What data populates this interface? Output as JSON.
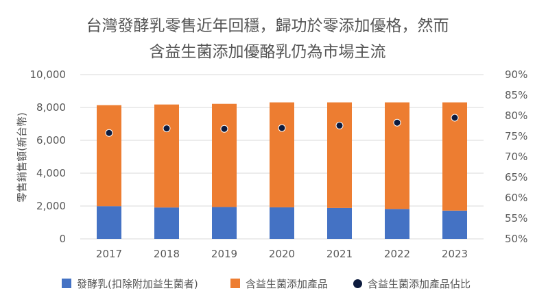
{
  "title_line1": "台灣發酵乳零售近年回穩，歸功於零添加優格，然而",
  "title_line2": "含益生菌添加優酪乳仍為市場主流",
  "chart_data": {
    "type": "bar",
    "stacked": true,
    "title": "台灣發酵乳零售近年回穩，歸功於零添加優格，然而含益生菌添加優酪乳仍為市場主流",
    "ylabel": "零售銷售額(新台幣)",
    "categories": [
      "2017",
      "2018",
      "2019",
      "2020",
      "2021",
      "2022",
      "2023"
    ],
    "ylim": [
      0,
      10000
    ],
    "yticks": [
      "10,000",
      "8,000",
      "6,000",
      "4,000",
      "2,000",
      "0"
    ],
    "y2lim": [
      50,
      90
    ],
    "y2ticks": [
      "90%",
      "85%",
      "80%",
      "75%",
      "70%",
      "65%",
      "60%",
      "55%",
      "50%"
    ],
    "series": [
      {
        "name": "發酵乳(扣除附加益生菌者)",
        "values": [
          1990,
          1910,
          1940,
          1920,
          1880,
          1820,
          1720
        ],
        "color": "#4472c4",
        "axis": "left"
      },
      {
        "name": "含益生菌添加產品",
        "values": [
          6150,
          6270,
          6280,
          6390,
          6430,
          6490,
          6590
        ],
        "color": "#ed7d31",
        "axis": "left"
      },
      {
        "name": "含益生菌添加產品佔比",
        "values": [
          75.8,
          76.9,
          76.8,
          77.0,
          77.6,
          78.3,
          79.5
        ],
        "color": "#0d1b3e",
        "axis": "right",
        "mark": "dot"
      }
    ],
    "legend": "bottom"
  }
}
